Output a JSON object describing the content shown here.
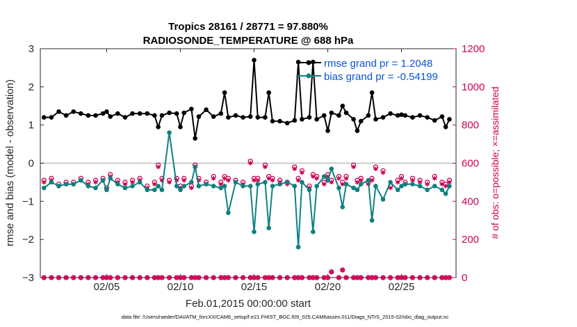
{
  "chart_data": {
    "type": "line",
    "title": "Tropics 28161 / 28771 = 97.880%",
    "subtitle": "RADIOSONDE_TEMPERATURE @ 688 hPa",
    "xlabel": "Feb.01,2015 00:00:00 start",
    "ylabel": "rmse and bias (model - observation)",
    "ylabel_right": "# of obs: o=possible; ×=assimilated",
    "xlim": [
      0.5,
      28.7
    ],
    "ylim": [
      -3,
      3
    ],
    "ylim_right": [
      0,
      1200
    ],
    "x_ticks": [
      5,
      10,
      15,
      20,
      25
    ],
    "x_tick_labels": [
      "02/05",
      "02/10",
      "02/15",
      "02/20",
      "02/25"
    ],
    "y_ticks": [
      -3,
      -2,
      -1,
      0,
      1,
      2,
      3
    ],
    "y_tick_labels": [
      "−3",
      "−2",
      "−1",
      "0",
      "1",
      "2",
      "3"
    ],
    "y_right_ticks": [
      0,
      200,
      400,
      600,
      800,
      1000,
      1200
    ],
    "y_right_tick_labels": [
      "0",
      "200",
      "400",
      "600",
      "800",
      "1000",
      "1200"
    ],
    "x": [
      0.75,
      1.25,
      1.75,
      2.25,
      2.75,
      3.25,
      3.75,
      4.25,
      4.75,
      5.0,
      5.25,
      5.75,
      6.25,
      6.75,
      7.25,
      7.75,
      8.25,
      8.5,
      8.75,
      9.25,
      9.75,
      10.0,
      10.25,
      10.75,
      11.0,
      11.25,
      11.75,
      12.25,
      12.75,
      13.0,
      13.25,
      13.75,
      14.25,
      14.75,
      15.0,
      15.25,
      15.75,
      16.0,
      16.25,
      16.75,
      17.25,
      17.75,
      18.0,
      18.25,
      18.75,
      19.0,
      19.25,
      19.75,
      20.0,
      20.25,
      20.75,
      21.0,
      21.25,
      21.75,
      22.0,
      22.25,
      22.75,
      23.0,
      23.25,
      23.75,
      24.25,
      24.75,
      25.0,
      25.25,
      25.75,
      26.25,
      26.75,
      27.25,
      27.75,
      28.0,
      28.25
    ],
    "series": [
      {
        "name": "rmse grand pr = 1.2048",
        "color": "#000000",
        "values": [
          1.2,
          1.2,
          1.35,
          1.25,
          1.35,
          1.3,
          1.25,
          1.25,
          1.3,
          1.35,
          1.22,
          1.3,
          1.2,
          1.3,
          1.3,
          1.3,
          1.25,
          0.95,
          1.25,
          1.32,
          1.3,
          0.95,
          1.32,
          1.42,
          0.65,
          1.22,
          1.4,
          1.22,
          1.3,
          1.85,
          1.2,
          1.25,
          1.2,
          1.22,
          2.7,
          1.2,
          1.2,
          1.85,
          1.1,
          1.1,
          1.05,
          1.12,
          2.65,
          1.15,
          1.2,
          2.65,
          1.15,
          1.25,
          0.85,
          1.32,
          1.25,
          1.5,
          1.32,
          1.15,
          0.85,
          1.1,
          1.25,
          1.85,
          1.15,
          1.2,
          1.3,
          1.25,
          1.27,
          1.25,
          1.2,
          1.25,
          1.2,
          1.12,
          1.22,
          0.95,
          1.15
        ]
      },
      {
        "name": "bias grand pr = -0.54199",
        "color": "#0e8080",
        "values": [
          -0.65,
          -0.5,
          -0.6,
          -0.55,
          -0.55,
          -0.45,
          -0.6,
          -0.65,
          -0.45,
          -0.7,
          -0.4,
          -0.55,
          -0.65,
          -0.6,
          -0.5,
          -0.7,
          -0.7,
          -0.6,
          -0.7,
          0.8,
          -0.6,
          -0.7,
          -0.6,
          -0.5,
          -0.1,
          -0.6,
          -0.55,
          -0.6,
          -0.65,
          -0.6,
          -1.3,
          -0.5,
          -0.6,
          -0.6,
          -1.8,
          -0.55,
          -0.5,
          -1.7,
          -0.6,
          -0.55,
          -0.5,
          -0.6,
          -2.2,
          -0.5,
          -0.7,
          -1.8,
          -0.6,
          -0.35,
          -0.45,
          -0.15,
          -0.65,
          -1.15,
          -0.55,
          -0.65,
          -0.7,
          -0.55,
          -0.45,
          -1.5,
          -0.6,
          -0.95,
          -0.5,
          -0.7,
          -0.6,
          -0.55,
          -0.55,
          -0.6,
          -0.7,
          -0.6,
          -0.7,
          -0.8,
          -0.6
        ]
      }
    ],
    "obs_possible": [
      510,
      520,
      490,
      500,
      500,
      520,
      500,
      510,
      520,
      470,
      540,
      510,
      500,
      510,
      520,
      480,
      500,
      590,
      520,
      510,
      520,
      480,
      520,
      480,
      590,
      520,
      500,
      530,
      500,
      530,
      520,
      510,
      500,
      610,
      520,
      520,
      590,
      530,
      520,
      510,
      500,
      580,
      520,
      560,
      480,
      540,
      530,
      500,
      540,
      510,
      530,
      500,
      530,
      590,
      510,
      520,
      500,
      520,
      580,
      560,
      480,
      510,
      530,
      500,
      520,
      510,
      500,
      530,
      500,
      490,
      510
    ],
    "obs_assimilated": [
      500,
      510,
      480,
      490,
      490,
      510,
      490,
      500,
      510,
      460,
      530,
      500,
      490,
      500,
      510,
      470,
      490,
      580,
      510,
      500,
      510,
      470,
      510,
      470,
      580,
      510,
      490,
      520,
      490,
      520,
      510,
      500,
      490,
      600,
      510,
      510,
      580,
      520,
      510,
      500,
      490,
      570,
      510,
      550,
      470,
      530,
      520,
      490,
      530,
      500,
      520,
      490,
      520,
      580,
      500,
      510,
      490,
      510,
      570,
      550,
      470,
      500,
      520,
      490,
      510,
      500,
      490,
      520,
      490,
      480,
      500
    ],
    "obs_low_possible": [
      0,
      0,
      0,
      0,
      0,
      0,
      0,
      0,
      0,
      0,
      0,
      0,
      0,
      0,
      0,
      0,
      0,
      0,
      0,
      0,
      0,
      0,
      0,
      0,
      0,
      0,
      0,
      0,
      0,
      0,
      0,
      0,
      0,
      0,
      0,
      0,
      0,
      0,
      0,
      0,
      0,
      0,
      0,
      0,
      0,
      0,
      0,
      0,
      0,
      30,
      0,
      40,
      0,
      0,
      0,
      0,
      0,
      0,
      0,
      0,
      0,
      0,
      0,
      0,
      0,
      0,
      0,
      0,
      0,
      0,
      0
    ],
    "grid": false,
    "legend_location": "top-right"
  },
  "footnote": "data file: /Users/raeder/DAI/ATM_forcXX/CAM6_setup/f.e21.FHIST_BGC.f09_025.CAM6assim.011/Diags_NTrS_2015-02/obs_diag_output.nc"
}
